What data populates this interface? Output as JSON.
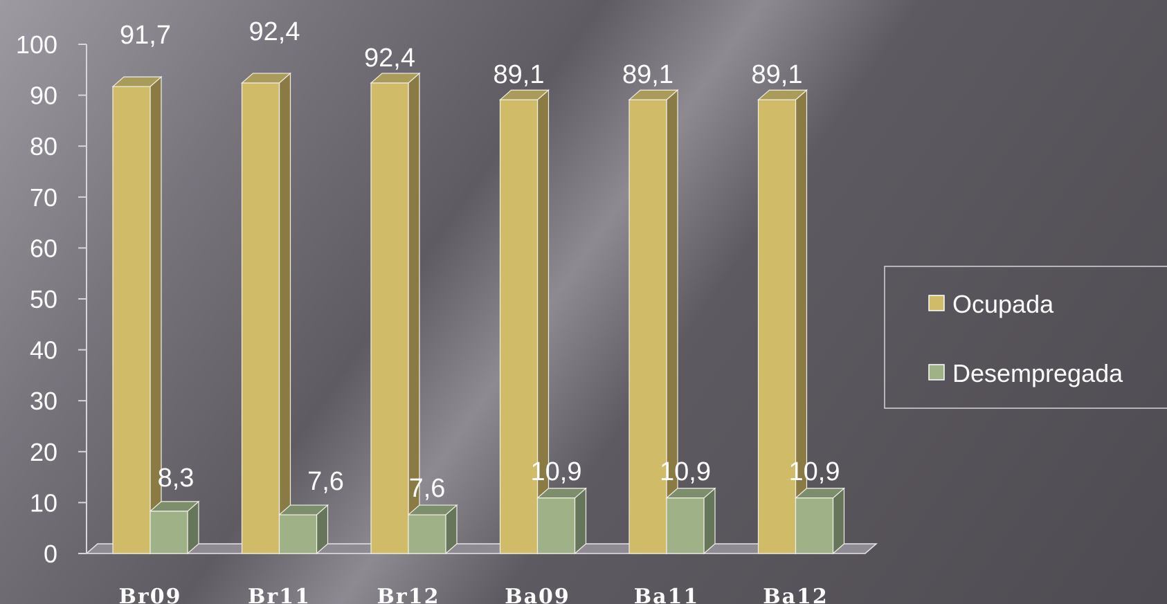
{
  "chart_data": {
    "type": "bar",
    "categories": [
      "Br09",
      "Br11",
      "Br12",
      "Ba09",
      "Ba11",
      "Ba12"
    ],
    "series": [
      {
        "name": "Ocupada",
        "values": [
          91.7,
          92.4,
          92.4,
          89.1,
          89.1,
          89.1
        ],
        "labels": [
          "91,7",
          "92,4",
          "92,4",
          "89,1",
          "89,1",
          "89,1"
        ],
        "color": "#cfbb68",
        "side_color": "#8a7a44",
        "top_color": "#a99b5a"
      },
      {
        "name": "Desempregada",
        "values": [
          8.3,
          7.6,
          7.6,
          10.9,
          10.9,
          10.9
        ],
        "labels": [
          "8,3",
          "7,6",
          "7,6",
          "10,9",
          "10,9",
          "10,9"
        ],
        "color": "#9fb287",
        "side_color": "#65765a",
        "top_color": "#7d8e6c"
      }
    ],
    "y_ticks": [
      "0",
      "10",
      "20",
      "30",
      "40",
      "50",
      "60",
      "70",
      "80",
      "90",
      "100"
    ],
    "ylim": [
      0,
      100
    ],
    "legend_position": "right",
    "grid": false,
    "three_d": true
  }
}
